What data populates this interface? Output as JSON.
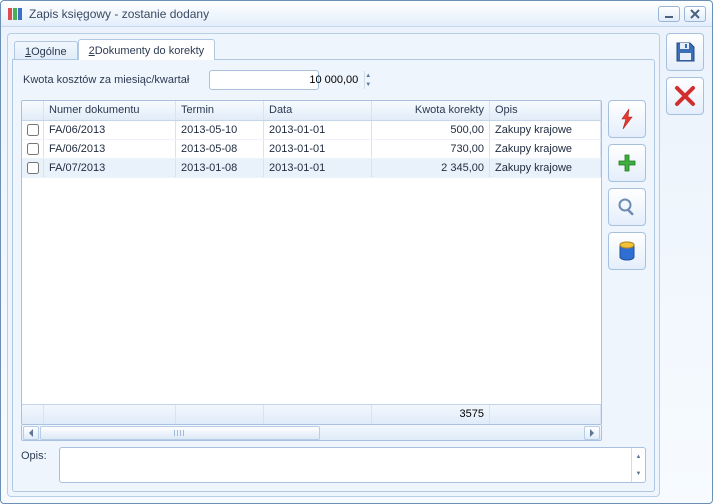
{
  "window": {
    "title": "Zapis księgowy - zostanie dodany"
  },
  "tabs": {
    "t1_prefix": "1",
    "t1_label": " Ogólne",
    "t2_prefix": "2",
    "t2_label": " Dokumenty do korekty"
  },
  "quota": {
    "label": "Kwota kosztów za miesiąc/kwartał",
    "value": "10 000,00"
  },
  "grid": {
    "columns": {
      "doc": "Numer dokumentu",
      "term": "Termin",
      "date": "Data",
      "amount": "Kwota korekty",
      "desc": "Opis"
    },
    "rows": [
      {
        "doc": "FA/06/2013",
        "term": "2013-05-10",
        "date": "2013-01-01",
        "amount": "500,00",
        "desc": "Zakupy krajowe",
        "selected": false
      },
      {
        "doc": "FA/06/2013",
        "term": "2013-05-08",
        "date": "2013-01-01",
        "amount": "730,00",
        "desc": "Zakupy krajowe",
        "selected": false
      },
      {
        "doc": "FA/07/2013",
        "term": "2013-01-08",
        "date": "2013-01-01",
        "amount": "2 345,00",
        "desc": "Zakupy krajowe",
        "selected": true
      }
    ],
    "footer_total": "3575"
  },
  "opis": {
    "label": "Opis:",
    "value": ""
  },
  "colors": {
    "accent_border": "#a9c1de",
    "header_grad_top": "#f7fbff",
    "header_grad_bot": "#e1ecf8",
    "row_sel": "#e9f1fb",
    "bolt": "#e63b2e",
    "plus": "#3fae3f",
    "x": "#d22e2e",
    "save_disk": "#3a6fb7",
    "barrel_yellow": "#f2c23b",
    "barrel_blue": "#2f6fd1"
  }
}
